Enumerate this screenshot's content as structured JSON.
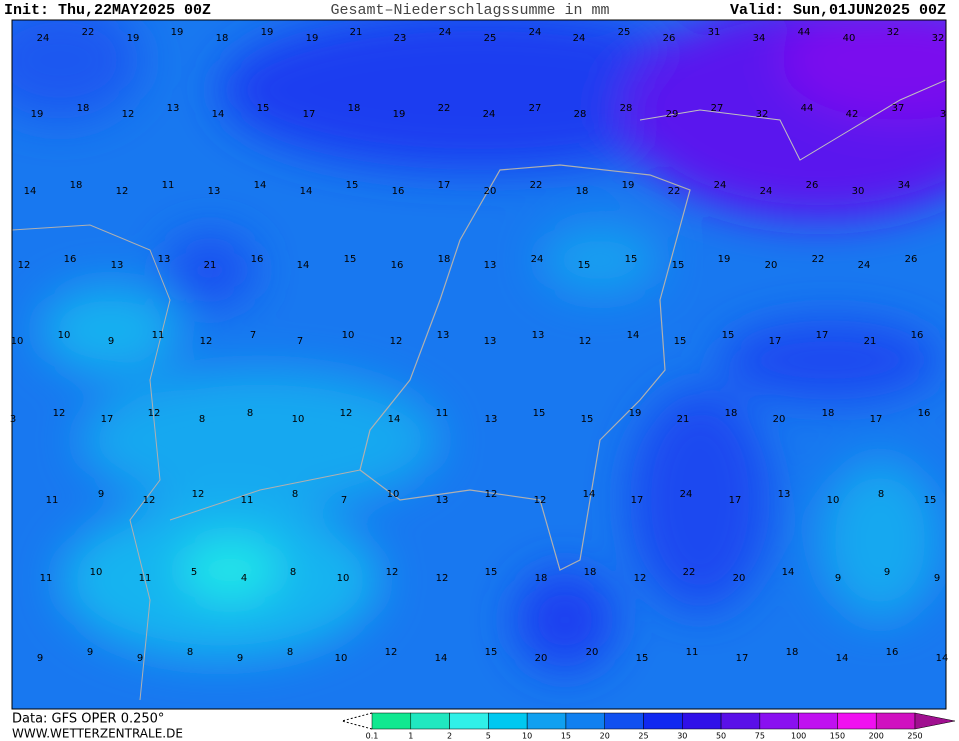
{
  "header": {
    "init": "Init: Thu,22MAY2025 00Z",
    "title": "Gesamt–Niederschlagssumme in mm",
    "valid": "Valid: Sun,01JUN2025 00Z"
  },
  "grid": {
    "rows": [
      [
        24,
        22,
        19,
        19,
        18,
        19,
        19,
        21,
        23,
        24,
        25,
        24,
        24,
        25,
        26,
        31,
        34,
        44,
        40,
        32,
        32
      ],
      [
        19,
        18,
        12,
        13,
        14,
        15,
        17,
        18,
        19,
        22,
        24,
        27,
        28,
        28,
        29,
        27,
        32,
        44,
        42,
        37,
        3
      ],
      [
        14,
        18,
        12,
        11,
        13,
        14,
        14,
        15,
        16,
        17,
        20,
        22,
        18,
        19,
        22,
        24,
        24,
        26,
        30,
        34
      ],
      [
        12,
        16,
        13,
        13,
        21,
        16,
        14,
        15,
        16,
        18,
        13,
        24,
        15,
        15,
        15,
        19,
        20,
        22,
        24,
        26
      ],
      [
        10,
        10,
        9,
        11,
        12,
        7,
        7,
        10,
        12,
        13,
        13,
        13,
        12,
        14,
        15,
        15,
        17,
        17,
        21,
        16
      ],
      [
        3,
        12,
        17,
        12,
        8,
        8,
        10,
        12,
        14,
        11,
        13,
        15,
        15,
        19,
        21,
        18,
        20,
        18,
        17,
        16
      ],
      [
        11,
        9,
        12,
        12,
        11,
        8,
        7,
        10,
        13,
        12,
        12,
        14,
        17,
        24,
        17,
        13,
        10,
        8,
        15
      ],
      [
        11,
        10,
        11,
        5,
        4,
        8,
        10,
        12,
        12,
        15,
        18,
        18,
        12,
        22,
        20,
        14,
        9,
        9,
        9
      ],
      [
        9,
        9,
        9,
        8,
        9,
        8,
        10,
        12,
        14,
        15,
        20,
        20,
        15,
        11,
        17,
        18,
        14,
        16,
        14
      ]
    ]
  },
  "legend": {
    "ticks": [
      0.1,
      1,
      2,
      5,
      10,
      15,
      20,
      25,
      30,
      50,
      75,
      100,
      150,
      200,
      250
    ],
    "colors": [
      "#10e890",
      "#20e8c0",
      "#30f0e8",
      "#00c8f0",
      "#10a0f0",
      "#1080f0",
      "#1050f0",
      "#1028f0",
      "#3010e8",
      "#5a10e8",
      "#8a10f0",
      "#c010f0",
      "#f010f0",
      "#d010c0",
      "#a01090"
    ]
  },
  "footer": {
    "data": "Data: GFS OPER 0.250°",
    "site": "WWW.WETTERZENTRALE.DE"
  }
}
